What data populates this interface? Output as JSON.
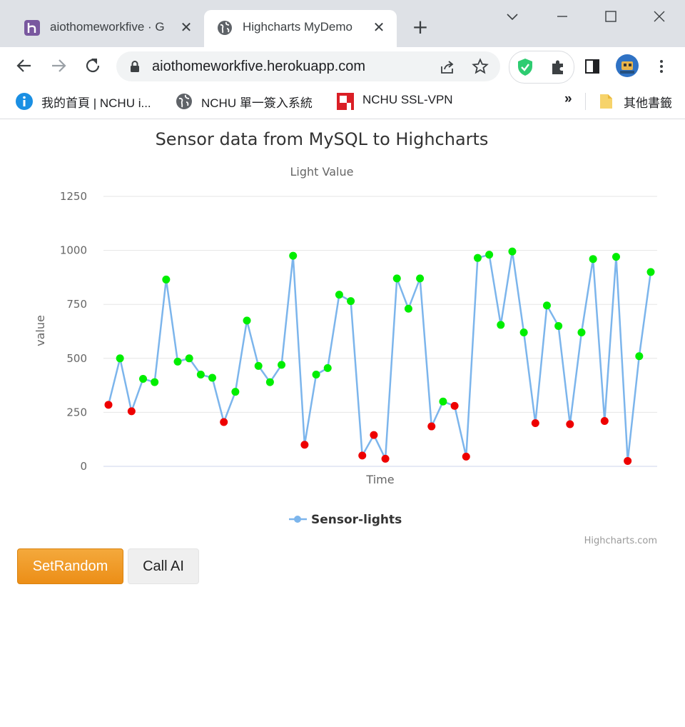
{
  "browser": {
    "tabs": [
      {
        "title": "aiothomeworkfive · G",
        "close": "✕"
      },
      {
        "title": "Highcharts MyDemo",
        "close": "✕"
      }
    ],
    "new_tab": "+",
    "window_controls": {
      "dropdown": "⌵",
      "minimize": "—",
      "maximize": "☐",
      "close": "✕"
    },
    "url": "aiothomeworkfive.herokuapp.com",
    "bookmarks": [
      {
        "label": "我的首頁 | NCHU i...",
        "icon": "info-icon"
      },
      {
        "label": "NCHU 單一簽入系統",
        "icon": "globe-icon"
      },
      {
        "label": "NCHU SSL-VPN",
        "icon": "vpn-logo-icon"
      }
    ],
    "bookmarks_overflow": "»",
    "other_bookmarks": "其他書籤"
  },
  "colors": {
    "series_line": "#7cb5ec",
    "point_high": "#00ee00",
    "point_low": "#ee0000",
    "setrandom_button": "#ec971f"
  },
  "chart_data": {
    "type": "line",
    "title": "Sensor data from MySQL to Highcharts",
    "subtitle": "Light Value",
    "xlabel": "Time",
    "ylabel": "value",
    "ylim": [
      0,
      1250
    ],
    "yticks": [
      0,
      250,
      500,
      750,
      1000,
      1250
    ],
    "grid": true,
    "legend": "bottom-center",
    "credits": "Highcharts.com",
    "threshold": 300,
    "series": [
      {
        "name": "Sensor-lights",
        "values": [
          285,
          500,
          255,
          405,
          390,
          865,
          485,
          500,
          425,
          410,
          205,
          345,
          675,
          465,
          390,
          470,
          975,
          100,
          425,
          455,
          795,
          765,
          50,
          145,
          35,
          870,
          730,
          870,
          185,
          300,
          280,
          45,
          965,
          980,
          655,
          995,
          620,
          200,
          745,
          650,
          195,
          620,
          960,
          210,
          970,
          25,
          510,
          900
        ]
      }
    ]
  },
  "buttons": {
    "setrandom": "SetRandom",
    "callai": "Call AI"
  }
}
